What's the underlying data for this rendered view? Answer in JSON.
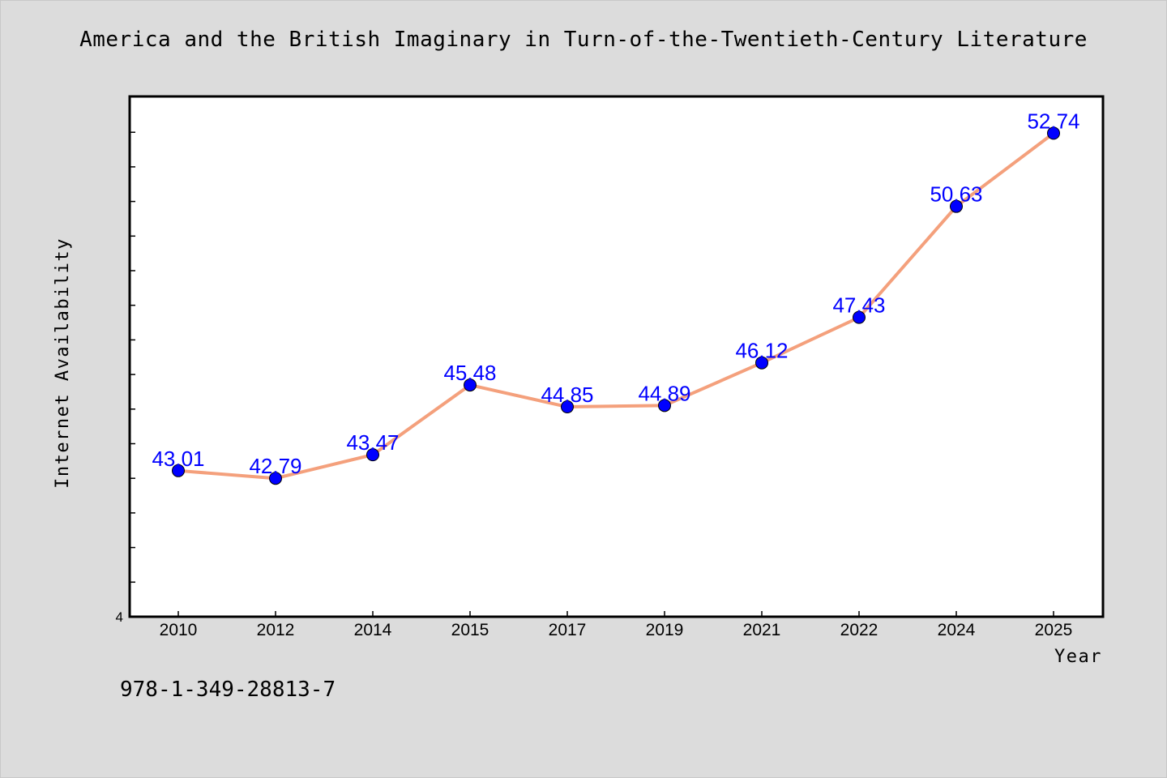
{
  "page": {
    "title": "America and the British Imaginary in Turn-of-the-Twentieth-Century Literature",
    "isbn": "978-1-349-28813-7"
  },
  "chart_data": {
    "type": "line",
    "title": "America and the British Imaginary in Turn-of-the-Twentieth-Century Literature",
    "xlabel": "Year",
    "ylabel": "Internet Availability",
    "categories": [
      "2010",
      "2012",
      "2014",
      "2015",
      "2017",
      "2019",
      "2021",
      "2022",
      "2024",
      "2025"
    ],
    "series": [
      {
        "values": [
          43.01,
          42.79,
          43.47,
          45.48,
          44.85,
          44.89,
          46.12,
          47.43,
          50.63,
          52.74
        ]
      }
    ],
    "data_labels": [
      "43.01",
      "42.79",
      "43.47",
      "45.48",
      "44.85",
      "44.89",
      "46.12",
      "47.43",
      "50.63",
      "52.74"
    ],
    "y_tick_label": "4",
    "ylim": [
      38.8,
      53.8
    ],
    "grid": false,
    "legend": "none",
    "colors": {
      "line": "#f4a07c",
      "marker": "#0000ff",
      "data_label": "#0000ff",
      "plot_background": "#ffffff",
      "page_background": "#dcdcdc"
    }
  }
}
